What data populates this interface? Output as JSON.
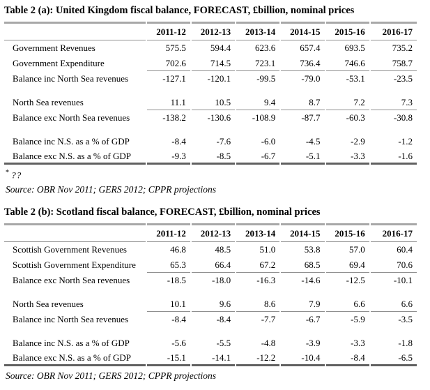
{
  "colors": {
    "text": "#000000",
    "rule_thick_top": "#a8a8a8",
    "rule_thin": "#8f8f8f",
    "rule_thick_bottom": "#616161"
  },
  "tables": [
    {
      "title": "Table 2 (a): United Kingdom fiscal balance, FORECAST, £billion, nominal prices",
      "columns": [
        "2011-12",
        "2012-13",
        "2013-14",
        "2014-15",
        "2015-16",
        "2016-17"
      ],
      "rows": [
        {
          "label": "Government Revenues",
          "values": [
            "575.5",
            "594.4",
            "623.6",
            "657.4",
            "693.5",
            "735.2"
          ],
          "underline": false
        },
        {
          "label": "Government Expenditure",
          "values": [
            "702.6",
            "714.5",
            "723.1",
            "736.4",
            "746.6",
            "758.7"
          ],
          "underline": true
        },
        {
          "label": "Balance inc North Sea revenues",
          "values": [
            "-127.1",
            "-120.1",
            "-99.5",
            "-79.0",
            "-53.1",
            "-23.5"
          ],
          "underline": false
        },
        {
          "spacer": true
        },
        {
          "label": "North Sea revenues",
          "values": [
            "11.1",
            "10.5",
            "9.4",
            "8.7",
            "7.2",
            "7.3"
          ],
          "underline": true
        },
        {
          "label": "Balance exc North Sea revenues",
          "values": [
            "-138.2",
            "-130.6",
            "-108.9",
            "-87.7",
            "-60.3",
            "-30.8"
          ],
          "underline": false
        },
        {
          "spacer": true
        },
        {
          "label": "Balance inc N.S. as a % of GDP",
          "values": [
            "-8.4",
            "-7.6",
            "-6.0",
            "-4.5",
            "-2.9",
            "-1.2"
          ],
          "underline": false
        },
        {
          "label": "Balance exc N.S. as a % of GDP",
          "values": [
            "-9.3",
            "-8.5",
            "-6.7",
            "-5.1",
            "-3.3",
            "-1.6"
          ],
          "underline": false
        }
      ],
      "footnote_marker": "*",
      "footnote_text": "??",
      "source": "Source: OBR Nov 2011; GERS 2012; CPPR projections"
    },
    {
      "title": "Table 2 (b): Scotland fiscal balance, FORECAST, £billion, nominal prices",
      "columns": [
        "2011-12",
        "2012-13",
        "2013-14",
        "2014-15",
        "2015-16",
        "2016-17"
      ],
      "rows": [
        {
          "label": "Scottish Government Revenues",
          "values": [
            "46.8",
            "48.5",
            "51.0",
            "53.8",
            "57.0",
            "60.4"
          ],
          "underline": false
        },
        {
          "label": "Scottish Government Expenditure",
          "values": [
            "65.3",
            "66.4",
            "67.2",
            "68.5",
            "69.4",
            "70.6"
          ],
          "underline": true
        },
        {
          "label": "Balance exc North Sea revenues",
          "values": [
            "-18.5",
            "-18.0",
            "-16.3",
            "-14.6",
            "-12.5",
            "-10.1"
          ],
          "underline": false
        },
        {
          "spacer": true
        },
        {
          "label": "North Sea revenues",
          "values": [
            "10.1",
            "9.6",
            "8.6",
            "7.9",
            "6.6",
            "6.6"
          ],
          "underline": true
        },
        {
          "label": "Balance inc North Sea revenues",
          "values": [
            "-8.4",
            "-8.4",
            "-7.7",
            "-6.7",
            "-5.9",
            "-3.5"
          ],
          "underline": false
        },
        {
          "spacer": true
        },
        {
          "label": "Balance inc N.S. as a % of GDP",
          "values": [
            "-5.6",
            "-5.5",
            "-4.8",
            "-3.9",
            "-3.3",
            "-1.8"
          ],
          "underline": false
        },
        {
          "label": "Balance exc N.S. as a % of GDP",
          "values": [
            "-15.1",
            "-14.1",
            "-12.2",
            "-10.4",
            "-8.4",
            "-6.5"
          ],
          "underline": false
        }
      ],
      "source": "Source: OBR Nov 2011; GERS 2012; CPPR projections"
    }
  ]
}
